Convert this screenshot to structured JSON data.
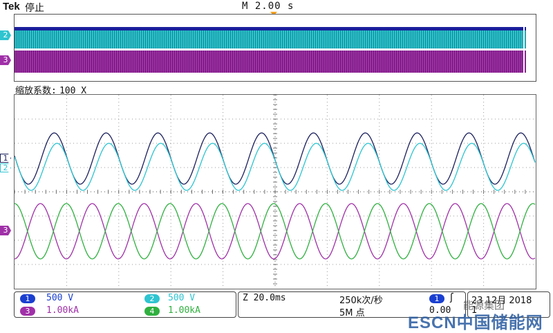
{
  "header": {
    "brand": "Tek",
    "state": "停止",
    "timebase": "M 2.00 s"
  },
  "zoom": {
    "label": "缩放系数:",
    "factor": "100 X"
  },
  "channels": [
    {
      "id": "1",
      "scale": "500 V",
      "color": "#1a1f5c",
      "badge_color": "#1a3fd0"
    },
    {
      "id": "2",
      "scale": "500 V",
      "color": "#2ec4d0",
      "badge_color": "#2ec4d0"
    },
    {
      "id": "3",
      "scale": "1.00kA",
      "color": "#a030a8",
      "badge_color": "#a030a8"
    },
    {
      "id": "4",
      "scale": "1.00kA",
      "color": "#30b040",
      "badge_color": "#30b040"
    }
  ],
  "acquisition": {
    "zoom_time": "Z 20.0ms",
    "sample_rate": "250k次/秒",
    "record_length": "5M 点"
  },
  "trigger": {
    "source": "1",
    "slope_icon": "rising-edge-icon",
    "level": "0.00"
  },
  "datetime": {
    "date": "23 12月 2018",
    "time": "1"
  },
  "watermark": {
    "text": "ESCN中国储能网",
    "wechat": "能源集团"
  }
}
